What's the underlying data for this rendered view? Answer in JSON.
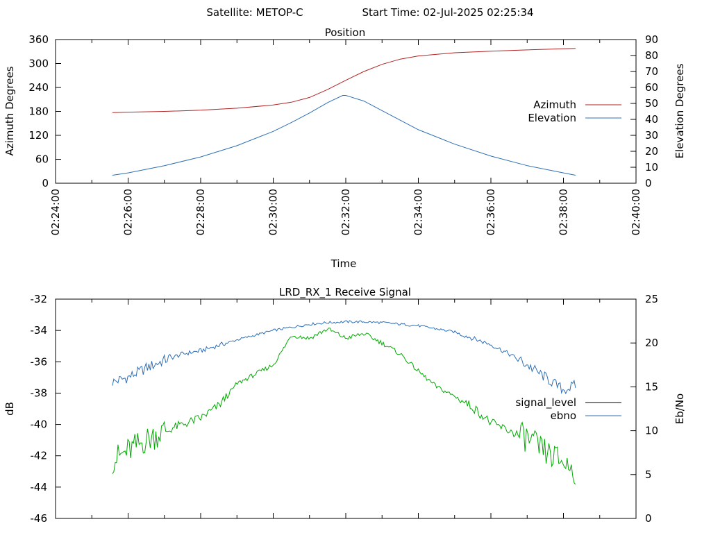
{
  "header": {
    "satellite_label": "Satellite: METOP-C",
    "start_label": "Start Time: 02-Jul-2025 02:25:34"
  },
  "chart_data": [
    {
      "type": "line",
      "title": "Position",
      "xlabel": "Time",
      "ylabel": "Azimuth Degrees",
      "y2label": "Elevation Degrees",
      "xlim_minutes": [
        0,
        16
      ],
      "x_ticks": [
        "02:24:00",
        "02:26:00",
        "02:28:00",
        "02:30:00",
        "02:32:00",
        "02:34:00",
        "02:36:00",
        "02:38:00",
        "02:40:00"
      ],
      "ylim": [
        0,
        360
      ],
      "y_ticks": [
        "0",
        "60",
        "120",
        "180",
        "240",
        "300",
        "360"
      ],
      "y2lim": [
        0,
        90
      ],
      "y2_ticks": [
        "0",
        "10",
        "20",
        "30",
        "40",
        "50",
        "60",
        "70",
        "80",
        "90"
      ],
      "legend_position": "right",
      "series": [
        {
          "name": "Azimuth",
          "axis": "y",
          "color": "#b22222",
          "x": [
            "02:25:34",
            "02:26:00",
            "02:27:00",
            "02:28:00",
            "02:29:00",
            "02:30:00",
            "02:30:30",
            "02:31:00",
            "02:31:30",
            "02:32:00",
            "02:32:30",
            "02:33:00",
            "02:33:30",
            "02:34:00",
            "02:35:00",
            "02:36:00",
            "02:37:00",
            "02:38:00",
            "02:38:20"
          ],
          "values": [
            177,
            178,
            180,
            183,
            188,
            196,
            203,
            215,
            235,
            258,
            280,
            298,
            311,
            319,
            327,
            331,
            334,
            337,
            338
          ]
        },
        {
          "name": "Elevation",
          "axis": "y2",
          "color": "#2c6fb7",
          "x": [
            "02:25:34",
            "02:26:00",
            "02:27:00",
            "02:28:00",
            "02:29:00",
            "02:30:00",
            "02:30:30",
            "02:31:00",
            "02:31:30",
            "02:31:55",
            "02:32:00",
            "02:32:30",
            "02:33:00",
            "02:33:30",
            "02:34:00",
            "02:35:00",
            "02:36:00",
            "02:37:00",
            "02:38:00",
            "02:38:20"
          ],
          "values": [
            5,
            6.5,
            11,
            16.5,
            23.5,
            32.5,
            38,
            44,
            50.5,
            55,
            55,
            51.5,
            45.5,
            39.5,
            33.5,
            24.5,
            17,
            11,
            6.5,
            5
          ]
        }
      ]
    },
    {
      "type": "line",
      "title": "LRD_RX_1 Receive Signal",
      "xlabel": "",
      "ylabel": "dB",
      "y2label": "Eb/No",
      "xlim_minutes": [
        0,
        16
      ],
      "ylim": [
        -46,
        -32
      ],
      "y_ticks": [
        "-32",
        "-34",
        "-36",
        "-38",
        "-40",
        "-42",
        "-44",
        "-46"
      ],
      "y2lim": [
        0,
        25
      ],
      "y2_ticks": [
        "0",
        "5",
        "10",
        "15",
        "20",
        "25"
      ],
      "legend_position": "right",
      "legend": [
        {
          "name": "signal_level",
          "color": "#000000"
        },
        {
          "name": "ebno",
          "color": "#2c6fb7"
        }
      ],
      "series": [
        {
          "name": "ebno",
          "axis": "y",
          "color": "#2c6fb7",
          "x": [
            "02:25:34",
            "02:26:00",
            "02:26:30",
            "02:27:00",
            "02:27:30",
            "02:28:00",
            "02:29:00",
            "02:30:00",
            "02:30:30",
            "02:31:00",
            "02:31:30",
            "02:32:00",
            "02:32:30",
            "02:33:00",
            "02:33:30",
            "02:34:00",
            "02:34:30",
            "02:35:00",
            "02:35:30",
            "02:36:00",
            "02:36:30",
            "02:37:00",
            "02:37:30",
            "02:38:00",
            "02:38:20"
          ],
          "values": [
            -37.3,
            -37.0,
            -36.4,
            -35.9,
            -35.5,
            -35.3,
            -34.6,
            -34.0,
            -33.8,
            -33.6,
            -33.5,
            -33.45,
            -33.45,
            -33.5,
            -33.6,
            -33.7,
            -33.9,
            -34.1,
            -34.5,
            -34.9,
            -35.5,
            -36.2,
            -37.0,
            -37.8,
            -37.5
          ]
        },
        {
          "name": "signal_level_trace",
          "axis": "y",
          "color": "#00aa00",
          "x": [
            "02:25:34",
            "02:26:00",
            "02:26:30",
            "02:27:00",
            "02:27:30",
            "02:28:00",
            "02:28:30",
            "02:29:00",
            "02:29:30",
            "02:30:00",
            "02:30:15",
            "02:30:30",
            "02:31:00",
            "02:31:30",
            "02:32:00",
            "02:32:30",
            "02:33:00",
            "02:33:30",
            "02:34:00",
            "02:34:30",
            "02:35:00",
            "02:35:30",
            "02:36:00",
            "02:36:30",
            "02:37:00",
            "02:37:30",
            "02:38:00",
            "02:38:20"
          ],
          "values": [
            -42.3,
            -41.7,
            -41.0,
            -40.4,
            -40.0,
            -39.6,
            -38.8,
            -37.4,
            -36.8,
            -36.2,
            -35.3,
            -34.3,
            -34.5,
            -33.9,
            -34.5,
            -34.2,
            -34.8,
            -35.5,
            -36.6,
            -37.6,
            -38.2,
            -38.9,
            -39.9,
            -40.4,
            -40.9,
            -41.8,
            -42.4,
            -43.0
          ]
        }
      ]
    }
  ]
}
